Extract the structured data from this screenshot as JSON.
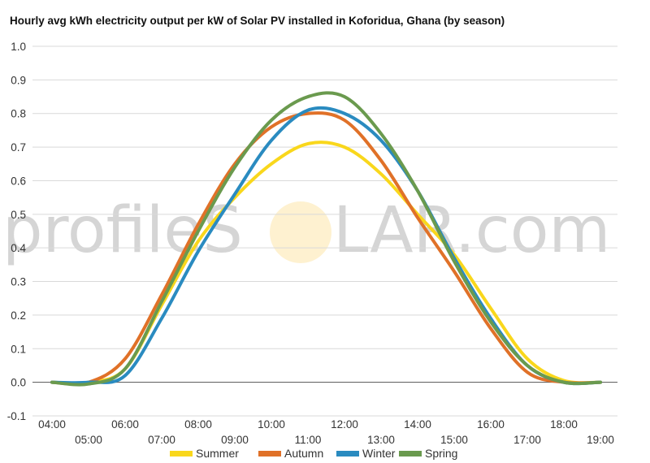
{
  "chart_data": {
    "type": "line",
    "title": "Hourly avg kWh electricity output per kW of Solar PV installed in Koforidua, Ghana (by season)",
    "xlabel": "",
    "ylabel": "",
    "ylim": [
      -0.1,
      1.0
    ],
    "yticks": [
      "1.0",
      "0.9",
      "0.8",
      "0.7",
      "0.6",
      "0.5",
      "0.4",
      "0.3",
      "0.2",
      "0.1",
      "0.0",
      "-0.1"
    ],
    "x": [
      "04:00",
      "05:00",
      "06:00",
      "07:00",
      "08:00",
      "09:00",
      "10:00",
      "11:00",
      "12:00",
      "13:00",
      "14:00",
      "15:00",
      "16:00",
      "17:00",
      "18:00",
      "19:00"
    ],
    "grid": true,
    "legend_position": "bottom",
    "series": [
      {
        "name": "Summer",
        "color": "#f9d71c",
        "values": [
          0.0,
          0.0,
          0.04,
          0.23,
          0.42,
          0.55,
          0.65,
          0.71,
          0.7,
          0.62,
          0.5,
          0.38,
          0.22,
          0.07,
          0.005,
          0.0
        ]
      },
      {
        "name": "Autumn",
        "color": "#e07128",
        "values": [
          0.0,
          0.0,
          0.07,
          0.26,
          0.47,
          0.65,
          0.76,
          0.8,
          0.78,
          0.66,
          0.49,
          0.33,
          0.16,
          0.03,
          0.0,
          0.0
        ]
      },
      {
        "name": "Winter",
        "color": "#2a8bc0",
        "values": [
          0.0,
          0.0,
          0.02,
          0.19,
          0.39,
          0.56,
          0.72,
          0.81,
          0.8,
          0.72,
          0.57,
          0.37,
          0.19,
          0.05,
          0.0,
          0.0
        ]
      },
      {
        "name": "Spring",
        "color": "#6a9a4e",
        "values": [
          0.0,
          -0.005,
          0.04,
          0.24,
          0.45,
          0.64,
          0.78,
          0.85,
          0.85,
          0.74,
          0.57,
          0.36,
          0.18,
          0.05,
          0.0,
          0.0
        ]
      }
    ]
  },
  "watermark": {
    "left": "profileS",
    "right": "LAR.com"
  }
}
